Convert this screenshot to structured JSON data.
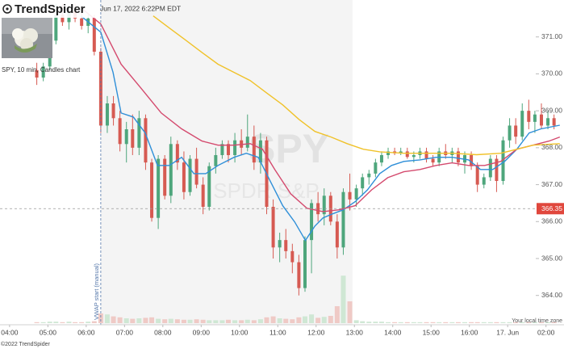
{
  "header": {
    "logo": "TrendSpider",
    "timestamp": "Jun 17, 2022 6:22PM EDT",
    "caption": "SPY, 10 min, Candles chart"
  },
  "chart_data": {
    "type": "candlestick",
    "watermark": [
      "SPY",
      "SPDR S&P"
    ],
    "annotation": "VWAP start (manual)",
    "annotation_x": 2.38,
    "timezone_note": "Your local time zone",
    "regular_session": [
      2.38,
      8.95
    ],
    "x": [
      0.71,
      0.88,
      1.05,
      1.21,
      1.38,
      1.55,
      1.71,
      1.88,
      2.05,
      2.21,
      2.38,
      2.55,
      2.71,
      2.88,
      3.05,
      3.21,
      3.38,
      3.55,
      3.71,
      3.88,
      4.05,
      4.21,
      4.38,
      4.55,
      4.71,
      4.88,
      5.05,
      5.21,
      5.38,
      5.55,
      5.71,
      5.88,
      6.05,
      6.21,
      6.38,
      6.55,
      6.71,
      6.88,
      7.05,
      7.21,
      7.38,
      7.55,
      7.71,
      7.88,
      8.05,
      8.21,
      8.38,
      8.55,
      8.71,
      8.88,
      9.05,
      9.21,
      9.38,
      9.55,
      9.71,
      9.88,
      10.05,
      10.21,
      10.38,
      10.55,
      10.71,
      10.88,
      11.05,
      11.21,
      11.38,
      11.55,
      11.71,
      11.88,
      12.05,
      12.21,
      12.38,
      12.55,
      12.71,
      12.88,
      13.05,
      13.21,
      13.38,
      13.55,
      13.71,
      13.88,
      14.05,
      14.21
    ],
    "open": [
      370.1,
      369.9,
      370.2,
      370.9,
      371.6,
      371.4,
      371.7,
      371.5,
      371.3,
      371.5,
      370.6,
      368.6,
      369.2,
      368.8,
      368.1,
      368.5,
      368.0,
      368.8,
      367.6,
      366.1,
      367.7,
      366.7,
      368.1,
      367.6,
      366.8,
      367.7,
      367.0,
      366.4,
      367.5,
      367.8,
      368.1,
      367.8,
      368.2,
      368.0,
      368.3,
      367.6,
      368.2,
      366.4,
      365.3,
      365.5,
      365.2,
      364.9,
      364.2,
      365.5,
      366.5,
      366.2,
      366.7,
      366.0,
      365.3,
      366.8,
      366.6,
      366.9,
      367.2,
      367.3,
      367.6,
      367.8,
      367.9,
      367.85,
      367.9,
      367.75,
      367.8,
      367.9,
      367.7,
      367.6,
      367.9,
      367.8,
      367.9,
      367.6,
      367.8,
      367.5,
      367.0,
      367.2,
      367.7,
      367.1,
      368.2,
      368.6,
      368.3,
      369.0,
      368.7,
      368.9,
      368.6,
      368.8
    ],
    "high": [
      370.3,
      370.3,
      371.0,
      371.9,
      371.9,
      371.8,
      371.9,
      371.7,
      371.6,
      371.6,
      370.7,
      369.4,
      369.4,
      369.0,
      368.7,
      368.9,
      369.0,
      368.9,
      367.7,
      367.8,
      367.8,
      368.3,
      368.2,
      367.9,
      367.8,
      368.0,
      367.2,
      367.6,
      368.0,
      368.2,
      368.2,
      368.4,
      368.5,
      368.9,
      368.6,
      368.4,
      368.3,
      366.6,
      365.7,
      365.8,
      365.4,
      365.1,
      365.6,
      366.6,
      366.8,
      366.9,
      366.8,
      366.2,
      366.9,
      367.3,
      367.0,
      367.3,
      367.4,
      367.7,
      367.9,
      368.0,
      368.0,
      368.0,
      368.0,
      367.9,
      368.0,
      368.0,
      367.8,
      368.0,
      368.1,
      368.0,
      368.0,
      367.9,
      367.9,
      367.6,
      367.3,
      367.8,
      367.8,
      368.3,
      368.8,
      368.8,
      369.2,
      369.3,
      369.0,
      369.2,
      369.0,
      368.9
    ],
    "low": [
      369.7,
      369.8,
      370.1,
      370.8,
      371.3,
      371.2,
      371.4,
      371.2,
      371.1,
      370.5,
      368.4,
      368.4,
      368.6,
      367.9,
      367.6,
      367.8,
      367.8,
      367.4,
      366.0,
      365.8,
      366.6,
      366.5,
      367.4,
      366.6,
      366.7,
      366.9,
      366.2,
      366.3,
      367.3,
      367.7,
      367.6,
      367.6,
      367.8,
      367.9,
      367.4,
      367.3,
      366.2,
      365.0,
      364.9,
      365.0,
      364.6,
      364.0,
      364.1,
      364.6,
      366.0,
      365.9,
      365.9,
      365.0,
      365.1,
      366.3,
      366.4,
      366.7,
      367.0,
      367.2,
      367.5,
      367.7,
      367.8,
      367.8,
      367.7,
      367.6,
      367.7,
      367.6,
      367.5,
      367.5,
      367.7,
      367.6,
      367.5,
      367.3,
      367.4,
      366.8,
      366.9,
      367.1,
      366.8,
      367.0,
      368.0,
      368.1,
      368.2,
      368.5,
      368.4,
      368.5,
      368.5,
      368.5
    ],
    "close": [
      369.9,
      370.2,
      370.9,
      371.6,
      371.4,
      371.7,
      371.5,
      371.3,
      371.5,
      370.6,
      368.6,
      369.2,
      368.8,
      368.1,
      368.5,
      368.0,
      368.8,
      367.6,
      366.1,
      367.7,
      366.7,
      368.1,
      367.6,
      366.8,
      367.7,
      367.0,
      366.4,
      367.5,
      367.8,
      368.1,
      367.8,
      368.2,
      368.0,
      368.3,
      367.6,
      368.2,
      366.4,
      365.3,
      365.5,
      365.2,
      364.9,
      364.2,
      365.5,
      366.5,
      366.2,
      366.7,
      366.0,
      365.3,
      366.8,
      366.6,
      366.9,
      367.2,
      367.3,
      367.6,
      367.8,
      367.9,
      367.85,
      367.9,
      367.75,
      367.8,
      367.9,
      367.7,
      367.6,
      367.9,
      367.8,
      367.9,
      367.6,
      367.8,
      367.5,
      367.0,
      367.2,
      367.7,
      367.1,
      368.2,
      368.6,
      368.3,
      369.0,
      368.7,
      368.9,
      368.6,
      368.8,
      368.6
    ],
    "volume": [
      2,
      2,
      3,
      3,
      2,
      3,
      2,
      2,
      3,
      4,
      20,
      18,
      14,
      12,
      10,
      9,
      10,
      11,
      12,
      9,
      8,
      9,
      8,
      7,
      7,
      8,
      7,
      6,
      6,
      6,
      7,
      6,
      6,
      7,
      6,
      8,
      12,
      14,
      10,
      9,
      8,
      12,
      14,
      18,
      11,
      13,
      15,
      35,
      98,
      45,
      6,
      4,
      3,
      3,
      3,
      2,
      2,
      2,
      2,
      2,
      2,
      2,
      2,
      2,
      2,
      2,
      2,
      2,
      2,
      2,
      2,
      2,
      2,
      2,
      2,
      2,
      2,
      2,
      2,
      2,
      2,
      2
    ],
    "volume_lim": [
      0,
      100
    ],
    "up_color": "#4ea67c",
    "down_color": "#d65a52",
    "up_volume_color": "#cfe7d4",
    "down_volume_color": "#efcac6",
    "lines": [
      {
        "color": "#2f8fd8",
        "x": [
          1.86,
          2.38,
          2.7,
          2.91,
          3.23,
          3.54,
          3.86,
          4.17,
          4.49,
          4.81,
          5.12,
          5.44,
          5.86,
          6.18,
          6.49,
          6.81,
          7.13,
          7.44,
          7.72,
          7.97,
          8.18,
          8.43,
          8.71,
          9.02,
          9.34,
          9.66,
          9.97,
          10.29,
          10.71,
          11.13,
          11.55,
          11.98,
          12.29,
          12.61,
          12.92,
          13.24,
          13.56,
          13.87,
          14.36
        ],
        "values": [
          371.57,
          371.13,
          370.04,
          368.94,
          368.83,
          368.4,
          367.52,
          367.52,
          367.74,
          367.3,
          367.3,
          367.52,
          367.74,
          367.85,
          367.74,
          367.08,
          366.43,
          365.99,
          365.49,
          365.88,
          366.1,
          366.21,
          366.32,
          366.54,
          366.86,
          367.3,
          367.52,
          367.63,
          367.67,
          367.74,
          367.74,
          367.67,
          367.41,
          367.41,
          367.63,
          367.96,
          368.4,
          368.51,
          368.61
        ]
      },
      {
        "color": "#d44a6e",
        "x": [
          1.86,
          2.38,
          2.91,
          3.44,
          3.96,
          4.49,
          5.02,
          5.44,
          5.86,
          6.28,
          6.6,
          6.92,
          7.34,
          7.76,
          8.18,
          8.6,
          9.02,
          9.45,
          9.87,
          10.29,
          10.71,
          11.13,
          11.55,
          11.98,
          12.4,
          12.82,
          13.24,
          13.66,
          14.08,
          14.36
        ],
        "values": [
          371.79,
          371.35,
          370.26,
          369.6,
          368.94,
          368.51,
          368.18,
          368.07,
          368.07,
          368.11,
          367.96,
          367.41,
          366.75,
          366.36,
          366.27,
          366.32,
          366.43,
          366.86,
          367.19,
          367.35,
          367.41,
          367.52,
          367.59,
          367.52,
          367.52,
          367.63,
          367.96,
          368.07,
          368.18,
          368.29
        ]
      },
      {
        "color": "#f0c22a",
        "x": [
          3.75,
          4.17,
          4.6,
          5.02,
          5.44,
          5.86,
          6.28,
          6.7,
          7.13,
          7.55,
          7.97,
          8.39,
          8.81,
          9.23,
          9.66,
          10.29,
          10.92,
          11.55,
          12.19,
          12.82,
          13.24,
          13.66,
          14.36
        ],
        "values": [
          371.57,
          371.24,
          370.91,
          370.58,
          370.26,
          370.04,
          369.82,
          369.49,
          369.16,
          368.77,
          368.44,
          368.29,
          368.11,
          367.96,
          367.89,
          367.85,
          367.85,
          367.85,
          367.81,
          367.85,
          367.96,
          368.07,
          368.11
        ]
      }
    ],
    "last_price": 366.35,
    "last_price_color": "#e0473d",
    "xlim": [
      -0.25,
      14.47
    ],
    "xticks": [
      {
        "value": 0,
        "label": "04:00"
      },
      {
        "value": 1,
        "label": "05:00"
      },
      {
        "value": 2,
        "label": "06:00"
      },
      {
        "value": 3,
        "label": "07:00"
      },
      {
        "value": 4,
        "label": "08:00"
      },
      {
        "value": 5,
        "label": "09:00"
      },
      {
        "value": 6,
        "label": "10:00"
      },
      {
        "value": 7,
        "label": "11:00"
      },
      {
        "value": 8,
        "label": "12:00"
      },
      {
        "value": 9,
        "label": "13:00"
      },
      {
        "value": 10,
        "label": "14:00"
      },
      {
        "value": 11,
        "label": "15:00"
      },
      {
        "value": 12,
        "label": "16:00"
      },
      {
        "value": 13,
        "label": "17. Jun"
      },
      {
        "value": 14,
        "label": "02:00"
      }
    ],
    "ylim": [
      363.25,
      372.0
    ],
    "yticks": [
      {
        "value": 364,
        "label": "364.00"
      },
      {
        "value": 365,
        "label": "365.00"
      },
      {
        "value": 366,
        "label": "366.00"
      },
      {
        "value": 367,
        "label": "367.00"
      },
      {
        "value": 368,
        "label": "368.00"
      },
      {
        "value": 369,
        "label": "369.00"
      },
      {
        "value": 370,
        "label": "370.00"
      },
      {
        "value": 371,
        "label": "371.00"
      }
    ]
  },
  "footer": {
    "copyright": "©2022 TrendSpider"
  }
}
